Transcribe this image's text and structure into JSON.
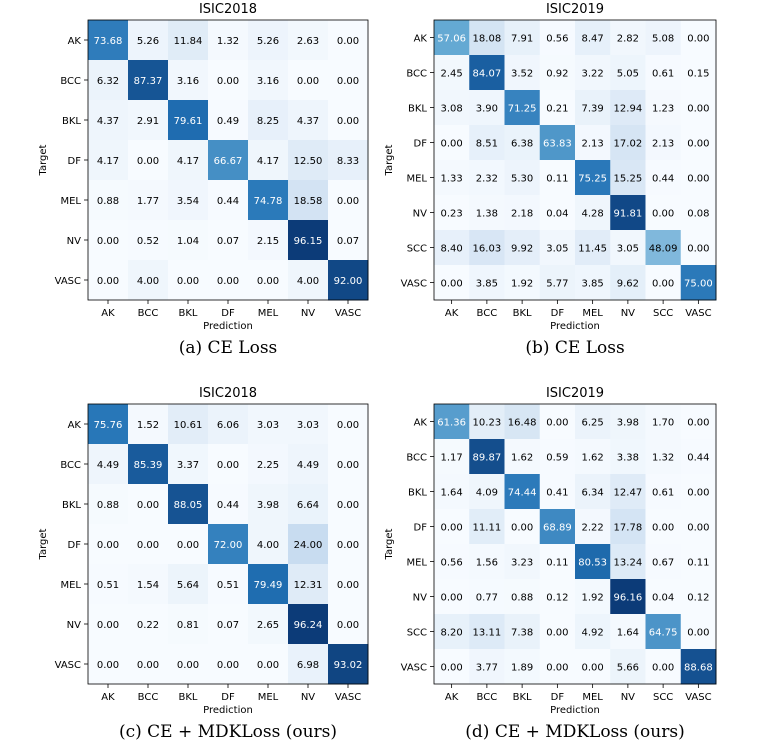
{
  "figure": {
    "colormap": {
      "low": "#f7fbff",
      "mid1": "#c6dbef",
      "mid2": "#6baed6",
      "mid3": "#2171b5",
      "high": "#08306b"
    },
    "text_light": "#ffffff",
    "text_dark": "#000000"
  },
  "chart_data": [
    {
      "type": "heatmap",
      "id": "a",
      "title": "ISIC2018",
      "caption": "(a) CE Loss",
      "xlabel": "Prediction",
      "ylabel": "Target",
      "labels": [
        "AK",
        "BCC",
        "BKL",
        "DF",
        "MEL",
        "NV",
        "VASC"
      ],
      "values": [
        [
          "73.68",
          "5.26",
          "11.84",
          "1.32",
          "5.26",
          "2.63",
          "0.00"
        ],
        [
          "6.32",
          "87.37",
          "3.16",
          "0.00",
          "3.16",
          "0.00",
          "0.00"
        ],
        [
          "4.37",
          "2.91",
          "79.61",
          "0.49",
          "8.25",
          "4.37",
          "0.00"
        ],
        [
          "4.17",
          "0.00",
          "4.17",
          "66.67",
          "4.17",
          "12.50",
          "8.33"
        ],
        [
          "0.88",
          "1.77",
          "3.54",
          "0.44",
          "74.78",
          "18.58",
          "0.00"
        ],
        [
          "0.00",
          "0.52",
          "1.04",
          "0.07",
          "2.15",
          "96.15",
          "0.07"
        ],
        [
          "0.00",
          "4.00",
          "0.00",
          "0.00",
          "0.00",
          "4.00",
          "92.00"
        ]
      ]
    },
    {
      "type": "heatmap",
      "id": "b",
      "title": "ISIC2019",
      "caption": "(b) CE Loss",
      "xlabel": "Prediction",
      "ylabel": "Target",
      "labels": [
        "AK",
        "BCC",
        "BKL",
        "DF",
        "MEL",
        "NV",
        "SCC",
        "VASC"
      ],
      "values": [
        [
          "57.06",
          "18.08",
          "7.91",
          "0.56",
          "8.47",
          "2.82",
          "5.08",
          "0.00"
        ],
        [
          "2.45",
          "84.07",
          "3.52",
          "0.92",
          "3.22",
          "5.05",
          "0.61",
          "0.15"
        ],
        [
          "3.08",
          "3.90",
          "71.25",
          "0.21",
          "7.39",
          "12.94",
          "1.23",
          "0.00"
        ],
        [
          "0.00",
          "8.51",
          "6.38",
          "63.83",
          "2.13",
          "17.02",
          "2.13",
          "0.00"
        ],
        [
          "1.33",
          "2.32",
          "5.30",
          "0.11",
          "75.25",
          "15.25",
          "0.44",
          "0.00"
        ],
        [
          "0.23",
          "1.38",
          "2.18",
          "0.04",
          "4.28",
          "91.81",
          "0.00",
          "0.08"
        ],
        [
          "8.40",
          "16.03",
          "9.92",
          "3.05",
          "11.45",
          "3.05",
          "48.09",
          "0.00"
        ],
        [
          "0.00",
          "3.85",
          "1.92",
          "5.77",
          "3.85",
          "9.62",
          "0.00",
          "75.00"
        ]
      ]
    },
    {
      "type": "heatmap",
      "id": "c",
      "title": "ISIC2018",
      "caption": "(c) CE + MDKLoss (ours)",
      "xlabel": "Prediction",
      "ylabel": "Target",
      "labels": [
        "AK",
        "BCC",
        "BKL",
        "DF",
        "MEL",
        "NV",
        "VASC"
      ],
      "values": [
        [
          "75.76",
          "1.52",
          "10.61",
          "6.06",
          "3.03",
          "3.03",
          "0.00"
        ],
        [
          "4.49",
          "85.39",
          "3.37",
          "0.00",
          "2.25",
          "4.49",
          "0.00"
        ],
        [
          "0.88",
          "0.00",
          "88.05",
          "0.44",
          "3.98",
          "6.64",
          "0.00"
        ],
        [
          "0.00",
          "0.00",
          "0.00",
          "72.00",
          "4.00",
          "24.00",
          "0.00"
        ],
        [
          "0.51",
          "1.54",
          "5.64",
          "0.51",
          "79.49",
          "12.31",
          "0.00"
        ],
        [
          "0.00",
          "0.22",
          "0.81",
          "0.07",
          "2.65",
          "96.24",
          "0.00"
        ],
        [
          "0.00",
          "0.00",
          "0.00",
          "0.00",
          "0.00",
          "6.98",
          "93.02"
        ]
      ]
    },
    {
      "type": "heatmap",
      "id": "d",
      "title": "ISIC2019",
      "caption": "(d) CE + MDKLoss (ours)",
      "xlabel": "Prediction",
      "ylabel": "Target",
      "labels": [
        "AK",
        "BCC",
        "BKL",
        "DF",
        "MEL",
        "NV",
        "SCC",
        "VASC"
      ],
      "values": [
        [
          "61.36",
          "10.23",
          "16.48",
          "0.00",
          "6.25",
          "3.98",
          "1.70",
          "0.00"
        ],
        [
          "1.17",
          "89.87",
          "1.62",
          "0.59",
          "1.62",
          "3.38",
          "1.32",
          "0.44"
        ],
        [
          "1.64",
          "4.09",
          "74.44",
          "0.41",
          "6.34",
          "12.47",
          "0.61",
          "0.00"
        ],
        [
          "0.00",
          "11.11",
          "0.00",
          "68.89",
          "2.22",
          "17.78",
          "0.00",
          "0.00"
        ],
        [
          "0.56",
          "1.56",
          "3.23",
          "0.11",
          "80.53",
          "13.24",
          "0.67",
          "0.11"
        ],
        [
          "0.00",
          "0.77",
          "0.88",
          "0.12",
          "1.92",
          "96.16",
          "0.04",
          "0.12"
        ],
        [
          "8.20",
          "13.11",
          "7.38",
          "0.00",
          "4.92",
          "1.64",
          "64.75",
          "0.00"
        ],
        [
          "0.00",
          "3.77",
          "1.89",
          "0.00",
          "0.00",
          "5.66",
          "0.00",
          "88.68"
        ]
      ]
    }
  ]
}
